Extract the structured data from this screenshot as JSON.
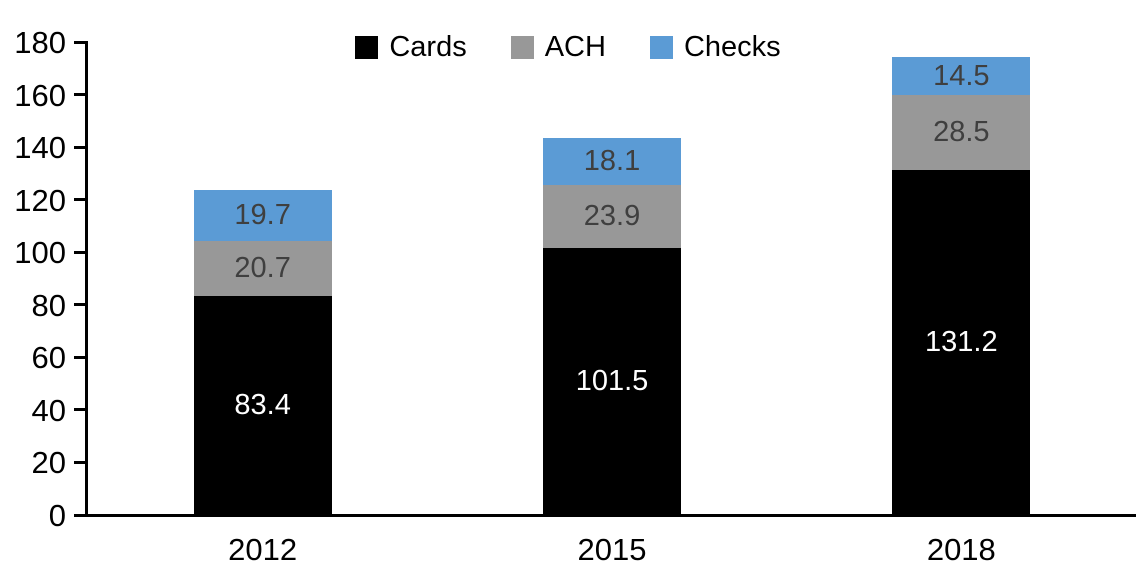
{
  "chart_data": {
    "type": "bar",
    "variant": "stacked-vertical",
    "title": "",
    "xlabel": "",
    "ylabel": "",
    "categories": [
      "2012",
      "2015",
      "2018"
    ],
    "series": [
      {
        "name": "Cards",
        "color": "#000000",
        "label_color": "#ffffff",
        "values": [
          83.4,
          101.5,
          131.2
        ]
      },
      {
        "name": "ACH",
        "color": "#989898",
        "label_color": "#3f3f3f",
        "values": [
          20.7,
          23.9,
          28.5
        ]
      },
      {
        "name": "Checks",
        "color": "#5b9bd5",
        "label_color": "#3f3f3f",
        "values": [
          19.7,
          18.1,
          14.5
        ]
      }
    ],
    "totals": [
      123.8,
      143.5,
      174.2
    ],
    "ylim": [
      0,
      180
    ],
    "yticks": [
      0,
      20,
      40,
      60,
      80,
      100,
      120,
      140,
      160,
      180
    ],
    "value_label_decimals": 1,
    "grid": false,
    "legend_position": "top-center",
    "axis_color": "#000000"
  }
}
